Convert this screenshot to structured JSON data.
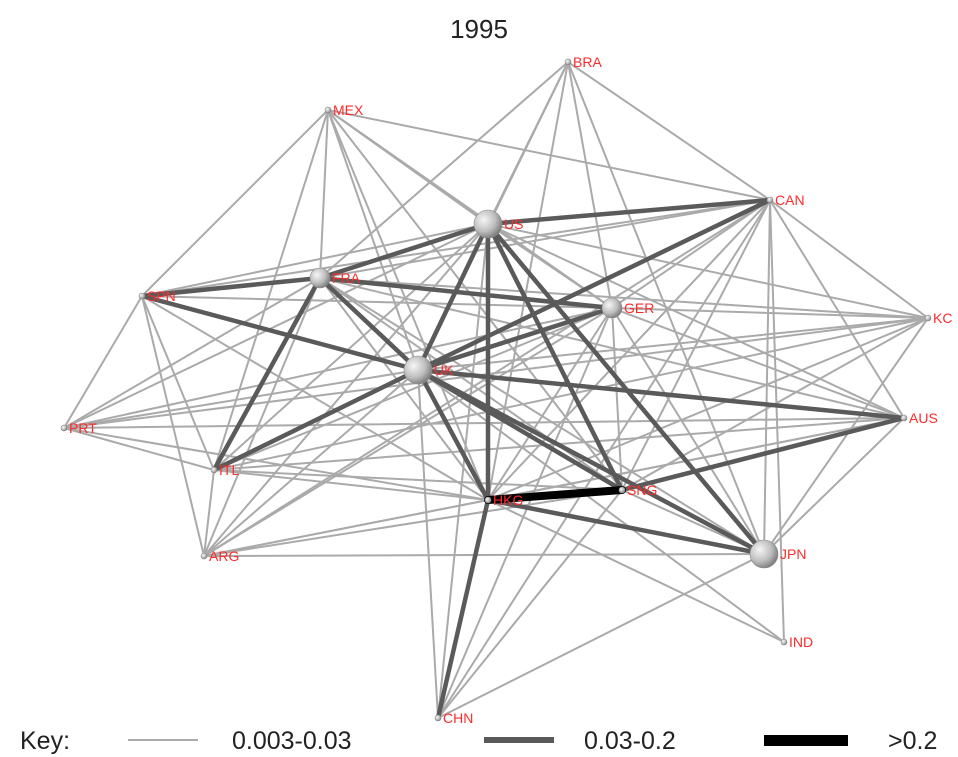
{
  "title": "1995",
  "colors": {
    "thin": "#aaaaaa",
    "medium": "#5a5a5a",
    "thick": "#000000",
    "label": "#ff2a2a"
  },
  "nodes": [
    {
      "id": "BRA",
      "label": "BRA",
      "size": "small"
    },
    {
      "id": "MEX",
      "label": "MEX",
      "size": "small"
    },
    {
      "id": "CAN",
      "label": "CAN",
      "size": "small"
    },
    {
      "id": "US",
      "label": "US",
      "size": "large"
    },
    {
      "id": "FRA",
      "label": "FRA",
      "size": "medium"
    },
    {
      "id": "SPN",
      "label": "SPN",
      "size": "small"
    },
    {
      "id": "GER",
      "label": "GER",
      "size": "medium"
    },
    {
      "id": "KC",
      "label": "KC",
      "size": "small"
    },
    {
      "id": "UK",
      "label": "UK",
      "size": "large"
    },
    {
      "id": "PRT",
      "label": "PRT",
      "size": "small"
    },
    {
      "id": "AUS",
      "label": "AUS",
      "size": "small"
    },
    {
      "id": "ITL",
      "label": "ITL",
      "size": "small"
    },
    {
      "id": "HKG",
      "label": "HKG",
      "size": "small"
    },
    {
      "id": "SNG",
      "label": "SNG",
      "size": "small"
    },
    {
      "id": "ARG",
      "label": "ARG",
      "size": "small"
    },
    {
      "id": "JPN",
      "label": "JPN",
      "size": "large"
    },
    {
      "id": "IND",
      "label": "IND",
      "size": "small"
    },
    {
      "id": "CHN",
      "label": "CHN",
      "size": "small"
    }
  ],
  "edges": [
    [
      "BRA",
      "CAN",
      "thin"
    ],
    [
      "BRA",
      "US",
      "thin"
    ],
    [
      "BRA",
      "FRA",
      "thin"
    ],
    [
      "BRA",
      "UK",
      "thin"
    ],
    [
      "BRA",
      "GER",
      "thin"
    ],
    [
      "BRA",
      "JPN",
      "thin"
    ],
    [
      "BRA",
      "HKG",
      "thin"
    ],
    [
      "MEX",
      "CAN",
      "thin"
    ],
    [
      "MEX",
      "US",
      "thin"
    ],
    [
      "MEX",
      "SPN",
      "thin"
    ],
    [
      "MEX",
      "FRA",
      "thin"
    ],
    [
      "MEX",
      "UK",
      "thin"
    ],
    [
      "MEX",
      "ITL",
      "thin"
    ],
    [
      "MEX",
      "GER",
      "thin"
    ],
    [
      "MEX",
      "HKG",
      "thin"
    ],
    [
      "MEX",
      "SNG",
      "thin"
    ],
    [
      "CAN",
      "US",
      "medium"
    ],
    [
      "CAN",
      "UK",
      "medium"
    ],
    [
      "CAN",
      "KC",
      "thin"
    ],
    [
      "CAN",
      "AUS",
      "thin"
    ],
    [
      "CAN",
      "JPN",
      "thin"
    ],
    [
      "CAN",
      "FRA",
      "thin"
    ],
    [
      "CAN",
      "GER",
      "thin"
    ],
    [
      "CAN",
      "HKG",
      "thin"
    ],
    [
      "CAN",
      "ITL",
      "thin"
    ],
    [
      "CAN",
      "SNG",
      "thin"
    ],
    [
      "CAN",
      "SPN",
      "thin"
    ],
    [
      "CAN",
      "ARG",
      "thin"
    ],
    [
      "CAN",
      "IND",
      "thin"
    ],
    [
      "CAN",
      "CHN",
      "thin"
    ],
    [
      "US",
      "FRA",
      "medium"
    ],
    [
      "US",
      "UK",
      "medium"
    ],
    [
      "US",
      "HKG",
      "medium"
    ],
    [
      "US",
      "JPN",
      "medium"
    ],
    [
      "US",
      "SNG",
      "medium"
    ],
    [
      "US",
      "GER",
      "thin"
    ],
    [
      "US",
      "ITL",
      "thin"
    ],
    [
      "US",
      "SPN",
      "thin"
    ],
    [
      "US",
      "KC",
      "thin"
    ],
    [
      "US",
      "AUS",
      "thin"
    ],
    [
      "US",
      "PRT",
      "thin"
    ],
    [
      "US",
      "ARG",
      "thin"
    ],
    [
      "FRA",
      "SPN",
      "medium"
    ],
    [
      "FRA",
      "GER",
      "medium"
    ],
    [
      "FRA",
      "UK",
      "medium"
    ],
    [
      "FRA",
      "ITL",
      "medium"
    ],
    [
      "FRA",
      "HKG",
      "thin"
    ],
    [
      "FRA",
      "PRT",
      "thin"
    ],
    [
      "FRA",
      "ARG",
      "thin"
    ],
    [
      "FRA",
      "SNG",
      "thin"
    ],
    [
      "FRA",
      "JPN",
      "thin"
    ],
    [
      "FRA",
      "AUS",
      "thin"
    ],
    [
      "FRA",
      "KC",
      "thin"
    ],
    [
      "SPN",
      "UK",
      "medium"
    ],
    [
      "SPN",
      "PRT",
      "thin"
    ],
    [
      "SPN",
      "ITL",
      "thin"
    ],
    [
      "SPN",
      "ARG",
      "thin"
    ],
    [
      "SPN",
      "GER",
      "thin"
    ],
    [
      "SPN",
      "HKG",
      "thin"
    ],
    [
      "GER",
      "UK",
      "medium"
    ],
    [
      "GER",
      "KC",
      "thin"
    ],
    [
      "GER",
      "AUS",
      "thin"
    ],
    [
      "GER",
      "ITL",
      "thin"
    ],
    [
      "GER",
      "HKG",
      "thin"
    ],
    [
      "GER",
      "JPN",
      "thin"
    ],
    [
      "GER",
      "SNG",
      "thin"
    ],
    [
      "GER",
      "PRT",
      "thin"
    ],
    [
      "GER",
      "ARG",
      "thin"
    ],
    [
      "GER",
      "CHN",
      "thin"
    ],
    [
      "KC",
      "UK",
      "thin"
    ],
    [
      "KC",
      "HKG",
      "thin"
    ],
    [
      "KC",
      "JPN",
      "thin"
    ],
    [
      "KC",
      "ITL",
      "thin"
    ],
    [
      "KC",
      "SNG",
      "thin"
    ],
    [
      "KC",
      "PRT",
      "thin"
    ],
    [
      "UK",
      "AUS",
      "medium"
    ],
    [
      "UK",
      "HKG",
      "medium"
    ],
    [
      "UK",
      "SNG",
      "medium"
    ],
    [
      "UK",
      "JPN",
      "medium"
    ],
    [
      "UK",
      "ITL",
      "medium"
    ],
    [
      "UK",
      "PRT",
      "thin"
    ],
    [
      "UK",
      "ARG",
      "thin"
    ],
    [
      "UK",
      "IND",
      "thin"
    ],
    [
      "UK",
      "CHN",
      "thin"
    ],
    [
      "PRT",
      "ITL",
      "thin"
    ],
    [
      "PRT",
      "HKG",
      "thin"
    ],
    [
      "PRT",
      "AUS",
      "thin"
    ],
    [
      "AUS",
      "SNG",
      "medium"
    ],
    [
      "AUS",
      "HKG",
      "thin"
    ],
    [
      "AUS",
      "JPN",
      "thin"
    ],
    [
      "AUS",
      "ITL",
      "thin"
    ],
    [
      "AUS",
      "ARG",
      "thin"
    ],
    [
      "ITL",
      "HKG",
      "thin"
    ],
    [
      "ITL",
      "ARG",
      "thin"
    ],
    [
      "ITL",
      "SNG",
      "thin"
    ],
    [
      "HKG",
      "SNG",
      "thick"
    ],
    [
      "HKG",
      "CHN",
      "medium"
    ],
    [
      "HKG",
      "JPN",
      "medium"
    ],
    [
      "HKG",
      "ARG",
      "thin"
    ],
    [
      "HKG",
      "IND",
      "thin"
    ],
    [
      "SNG",
      "JPN",
      "thin"
    ],
    [
      "SNG",
      "CHN",
      "thin"
    ],
    [
      "JPN",
      "CHN",
      "thin"
    ],
    [
      "JPN",
      "ARG",
      "thin"
    ],
    [
      "ARG",
      "SNG",
      "thin"
    ],
    [
      "CHN",
      "US",
      "thin"
    ]
  ],
  "key": {
    "label": "Key:",
    "items": [
      {
        "label": "0.003-0.03",
        "weight": "thin"
      },
      {
        "label": "0.03-0.2",
        "weight": "medium"
      },
      {
        "label": ">0.2",
        "weight": "thick"
      }
    ]
  }
}
